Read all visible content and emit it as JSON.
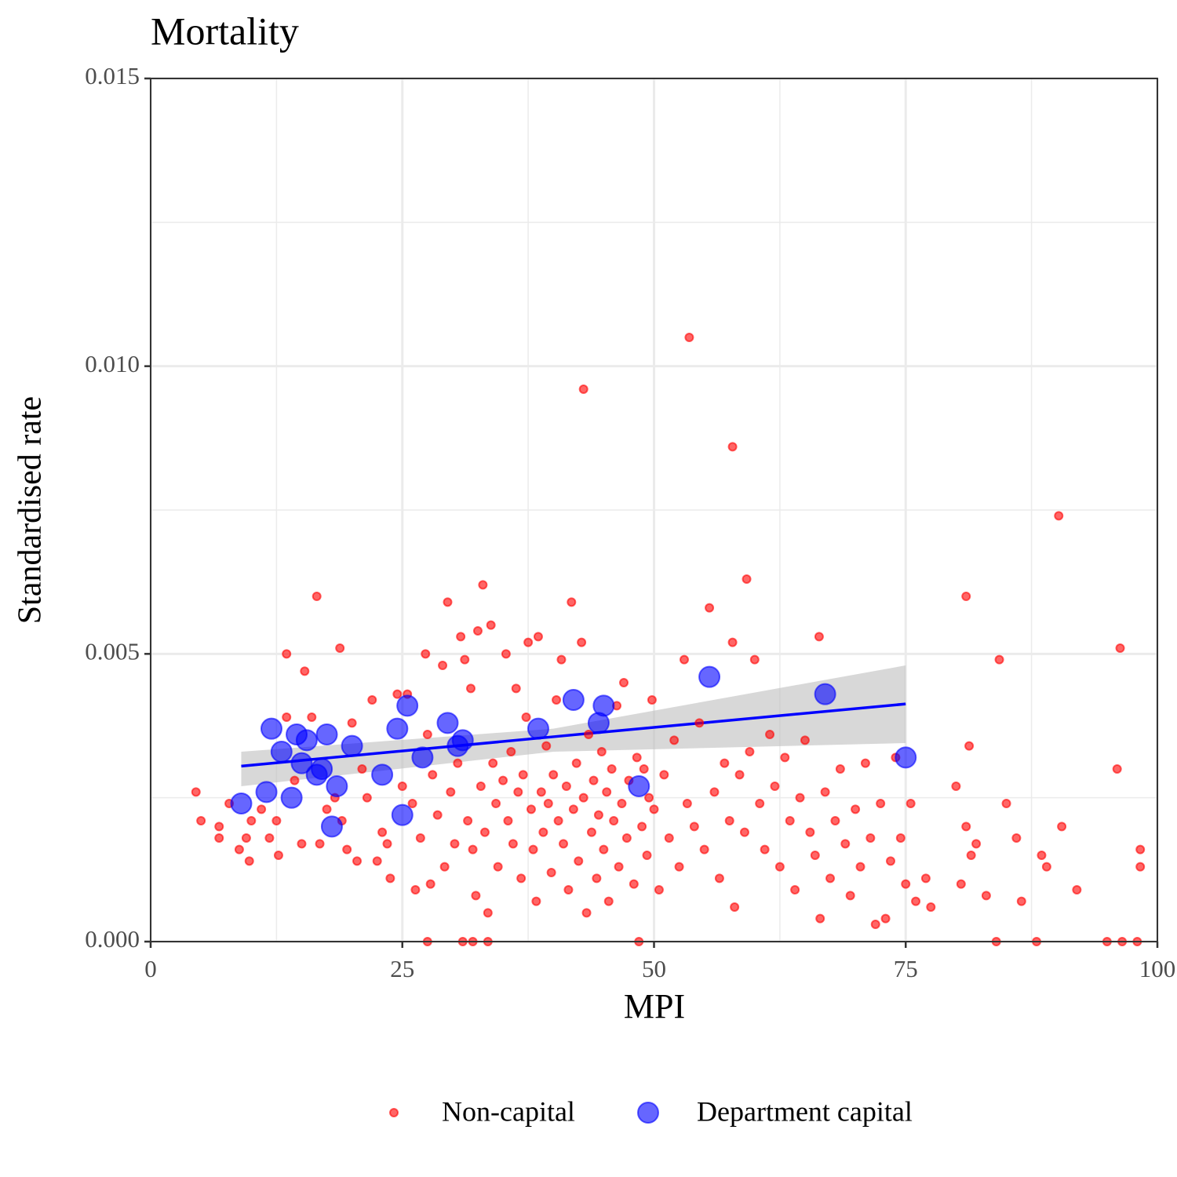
{
  "chart_data": {
    "type": "scatter",
    "title": "Mortality",
    "x_label": "MPI",
    "y_label": "Standardised rate",
    "xlim": [
      0,
      100
    ],
    "ylim": [
      0,
      0.015
    ],
    "xticks": [
      0,
      25,
      50,
      75,
      100
    ],
    "yticks": [
      {
        "value": 0,
        "label": "0.000"
      },
      {
        "value": 0.005,
        "label": "0.005"
      },
      {
        "value": 0.01,
        "label": "0.010"
      },
      {
        "value": 0.015,
        "label": "0.015"
      }
    ],
    "minor_xticks": [
      12.5,
      37.5,
      62.5,
      87.5
    ],
    "minor_yticks": [
      0.0025,
      0.0075,
      0.0125
    ],
    "grid": true,
    "legend_position": "bottom",
    "series": [
      {
        "name": "Non-capital",
        "color": "#ff0000",
        "marker_radius": 5,
        "x": [
          4.5,
          5,
          6.8,
          6.8,
          7.8,
          8.8,
          9.5,
          9.8,
          10,
          11,
          11.8,
          12.5,
          12.7,
          13.5,
          13.5,
          14.3,
          15,
          15.3,
          16,
          16.5,
          16.8,
          17.5,
          18.3,
          18.8,
          19,
          19.5,
          20,
          20.5,
          21,
          21.5,
          22,
          22.5,
          23,
          23.5,
          23.8,
          24.5,
          25,
          25.5,
          26,
          26.3,
          26.8,
          27.3,
          27.5,
          27.5,
          27.8,
          28,
          28.5,
          29,
          29.2,
          29.5,
          29.8,
          30.2,
          30.5,
          30.8,
          31,
          31.2,
          31.5,
          31.8,
          32,
          32,
          32.3,
          32.5,
          32.8,
          33,
          33.2,
          33.5,
          33.5,
          33.8,
          34,
          34.3,
          34.5,
          35,
          35.3,
          35.5,
          35.8,
          36,
          36.3,
          36.5,
          36.8,
          37,
          37.3,
          37.5,
          37.8,
          38,
          38.3,
          38.5,
          38.8,
          39,
          39.3,
          39.5,
          39.8,
          40,
          40.3,
          40.5,
          40.8,
          41,
          41.3,
          41.5,
          41.8,
          42,
          42.3,
          42.5,
          42.8,
          43,
          43,
          43.3,
          43.5,
          43.8,
          44,
          44.3,
          44.5,
          44.8,
          45,
          45.3,
          45.5,
          45.8,
          46,
          46.3,
          46.5,
          46.8,
          47,
          47.3,
          47.5,
          48,
          48.3,
          48.5,
          48.8,
          49,
          49.3,
          49.5,
          49.8,
          50,
          50.5,
          51,
          51.5,
          52,
          52.5,
          53,
          53.3,
          53.5,
          54,
          54.5,
          55,
          55.5,
          56,
          56.5,
          57,
          57.5,
          57.8,
          57.8,
          58,
          58.5,
          59,
          59.2,
          59.5,
          60,
          60.5,
          61,
          61.5,
          62,
          62.5,
          63,
          63.5,
          64,
          64.5,
          65,
          65.5,
          66,
          66.4,
          66.5,
          67,
          67.5,
          68,
          68.5,
          69,
          69.5,
          70,
          70.5,
          71,
          71.5,
          72,
          72.5,
          73,
          73.5,
          74,
          74.5,
          75,
          75.5,
          76,
          77,
          77.5,
          80,
          80.5,
          81,
          81,
          81.3,
          81.5,
          82,
          83,
          84,
          84.3,
          85,
          86,
          86.5,
          88,
          88.5,
          89,
          90.2,
          90.5,
          92,
          95,
          96,
          96.3,
          96.5,
          98,
          98.3,
          98.3
        ],
        "values": [
          0.0026,
          0.0021,
          0.002,
          0.0018,
          0.0024,
          0.0016,
          0.0018,
          0.0014,
          0.0021,
          0.0023,
          0.0018,
          0.0021,
          0.0015,
          0.005,
          0.0039,
          0.0028,
          0.0017,
          0.0047,
          0.0039,
          0.006,
          0.0017,
          0.0023,
          0.0025,
          0.0051,
          0.0021,
          0.0016,
          0.0038,
          0.0014,
          0.003,
          0.0025,
          0.0042,
          0.0014,
          0.0019,
          0.0017,
          0.0011,
          0.0043,
          0.0027,
          0.0043,
          0.0024,
          0.0009,
          0.0018,
          0.005,
          0.0036,
          0,
          0.001,
          0.0029,
          0.0022,
          0.0048,
          0.0013,
          0.0059,
          0.0026,
          0.0017,
          0.0031,
          0.0053,
          0,
          0.0049,
          0.0021,
          0.0044,
          0,
          0.0016,
          0.0008,
          0.0054,
          0.0027,
          0.0062,
          0.0019,
          0,
          0.0005,
          0.0055,
          0.0031,
          0.0024,
          0.0013,
          0.0028,
          0.005,
          0.0021,
          0.0033,
          0.0017,
          0.0044,
          0.0026,
          0.0011,
          0.0029,
          0.0039,
          0.0052,
          0.0023,
          0.0016,
          0.0007,
          0.0053,
          0.0026,
          0.0019,
          0.0034,
          0.0024,
          0.0012,
          0.0029,
          0.0042,
          0.0021,
          0.0049,
          0.0017,
          0.0027,
          0.0009,
          0.0059,
          0.0023,
          0.0031,
          0.0014,
          0.0052,
          0.0096,
          0.0025,
          0.0005,
          0.0036,
          0.0019,
          0.0028,
          0.0011,
          0.0022,
          0.0033,
          0.0016,
          0.0026,
          0.0007,
          0.003,
          0.0021,
          0.0041,
          0.0013,
          0.0024,
          0.0045,
          0.0018,
          0.0028,
          0.001,
          0.0032,
          0,
          0.002,
          0.003,
          0.0015,
          0.0025,
          0.0042,
          0.0023,
          0.0009,
          0.0029,
          0.0018,
          0.0035,
          0.0013,
          0.0049,
          0.0024,
          0.0105,
          0.002,
          0.0038,
          0.0016,
          0.0058,
          0.0026,
          0.0011,
          0.0031,
          0.0021,
          0.0086,
          0.0052,
          0.0006,
          0.0029,
          0.0019,
          0.0063,
          0.0033,
          0.0049,
          0.0024,
          0.0016,
          0.0036,
          0.0027,
          0.0013,
          0.0032,
          0.0021,
          0.0009,
          0.0025,
          0.0035,
          0.0019,
          0.0015,
          0.0053,
          0.0004,
          0.0026,
          0.0011,
          0.0021,
          0.003,
          0.0017,
          0.0008,
          0.0023,
          0.0013,
          0.0031,
          0.0018,
          0.0003,
          0.0024,
          0.0004,
          0.0014,
          0.0032,
          0.0018,
          0.001,
          0.0024,
          0.0007,
          0.0011,
          0.0006,
          0.0027,
          0.001,
          0.006,
          0.002,
          0.0034,
          0.0015,
          0.0017,
          0.0008,
          0,
          0.0049,
          0.0024,
          0.0018,
          0.0007,
          0,
          0.0015,
          0.0013,
          0.0074,
          0.002,
          0.0009,
          0,
          0.003,
          0.0051,
          0,
          0,
          0.0016,
          0.0013
        ]
      },
      {
        "name": "Department capital",
        "color": "#0000ff",
        "marker_radius": 13,
        "x": [
          9,
          11.5,
          12,
          13,
          14,
          14.5,
          15,
          15.5,
          16.5,
          17,
          17.5,
          18,
          18.5,
          20,
          23,
          24.5,
          25,
          25.5,
          27,
          29.5,
          30.5,
          31,
          38.5,
          42,
          44.5,
          45,
          48.5,
          55.5,
          67,
          75
        ],
        "values": [
          0.0024,
          0.0026,
          0.0037,
          0.0033,
          0.0025,
          0.0036,
          0.0031,
          0.0035,
          0.0029,
          0.003,
          0.0036,
          0.002,
          0.0027,
          0.0034,
          0.0029,
          0.0037,
          0.0022,
          0.0041,
          0.0032,
          0.0038,
          0.0034,
          0.0035,
          0.0037,
          0.0042,
          0.0038,
          0.0041,
          0.0027,
          0.0046,
          0.0043,
          0.0032
        ]
      }
    ],
    "trend": {
      "color": "#0000ff",
      "band_color": "#bebebe",
      "x": [
        9,
        40,
        75
      ],
      "values": [
        0.00305,
        0.00356,
        0.00413
      ],
      "ci_lower": [
        0.0027,
        0.0033,
        0.00345
      ],
      "ci_upper": [
        0.0033,
        0.0037,
        0.0048
      ]
    }
  }
}
